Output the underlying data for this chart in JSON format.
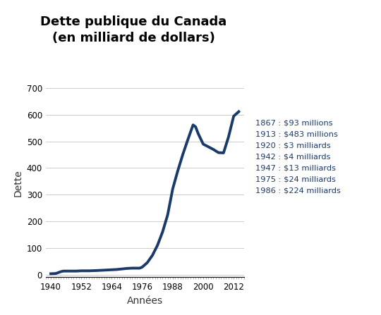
{
  "title": "Dette publique du Canada\n(en milliard de dollars)",
  "xlabel": "Années",
  "ylabel": "Dette",
  "line_color": "#1a3a6b",
  "line_width": 2.8,
  "background_color": "#ffffff",
  "text_color": "#1a3a6b",
  "ylim": [
    -10,
    700
  ],
  "yticks": [
    0,
    100,
    200,
    300,
    400,
    500,
    600,
    700
  ],
  "xticks": [
    1940,
    1952,
    1964,
    1976,
    1988,
    2000,
    2012
  ],
  "annotation_lines": [
    "1867 : $93 millions",
    "1913 : $483 millions",
    "1920 : $3 milliards",
    "1942 : $4 milliards",
    "1947 : $13 milliards",
    "1975 : $24 milliards",
    "1986 : $224 milliards"
  ],
  "data": {
    "years": [
      1940,
      1942,
      1944,
      1945,
      1947,
      1950,
      1952,
      1955,
      1958,
      1960,
      1962,
      1964,
      1966,
      1968,
      1970,
      1972,
      1974,
      1975,
      1976,
      1978,
      1980,
      1982,
      1984,
      1986,
      1988,
      1990,
      1992,
      1994,
      1996,
      1997,
      1998,
      1999,
      2000,
      2002,
      2004,
      2006,
      2008,
      2010,
      2012,
      2014
    ],
    "values": [
      3,
      4,
      11,
      13,
      13,
      13,
      14,
      14,
      15,
      16,
      17,
      18,
      19,
      21,
      23,
      24,
      24,
      24,
      28,
      45,
      72,
      110,
      160,
      224,
      322,
      390,
      452,
      508,
      562,
      555,
      530,
      510,
      490,
      480,
      470,
      458,
      457,
      518,
      595,
      612
    ]
  }
}
